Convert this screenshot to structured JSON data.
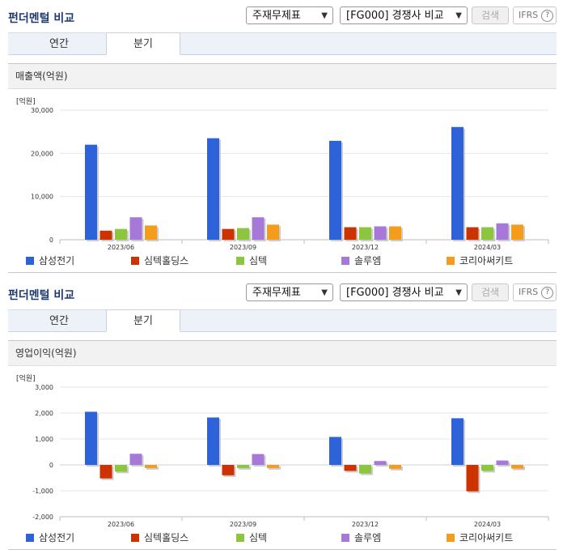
{
  "colors": {
    "title": "#1f3a6e",
    "samsung": "#2e62d9",
    "simtek_holdings": "#cc3300",
    "simtek": "#8cc63f",
    "solum": "#a679d8",
    "korea_circuit": "#f49c1c"
  },
  "panels": [
    {
      "title": "펀더멘털 비교",
      "select1": "주재무제표",
      "select2": "[FG000] 경쟁사 비교",
      "search_label": "검색",
      "ifrs_label": "IFRS",
      "ifrs_help": "?",
      "tabs": [
        "연간",
        "분기"
      ],
      "active_tab": 1,
      "chart_title": "매출액(억원)",
      "legend": [
        "삼성전기",
        "심텍홀딩스",
        "심텍",
        "솔루엠",
        "코리아써키트"
      ]
    },
    {
      "title": "펀더멘털 비교",
      "select1": "주재무제표",
      "select2": "[FG000] 경쟁사 비교",
      "search_label": "검색",
      "ifrs_label": "IFRS",
      "ifrs_help": "?",
      "tabs": [
        "연간",
        "분기"
      ],
      "active_tab": 1,
      "chart_title": "영업이익(억원)",
      "legend": [
        "삼성전기",
        "심텍홀딩스",
        "심텍",
        "솔루엠",
        "코리아써키트"
      ]
    }
  ],
  "chart_data": [
    {
      "type": "bar",
      "ylabel": "[억원]",
      "ylim": [
        0,
        30000
      ],
      "yticks": [
        "0",
        "10,000",
        "20,000",
        "30,000"
      ],
      "ytick_values": [
        0,
        10000,
        20000,
        30000
      ],
      "categories": [
        "2023/06",
        "2023/09",
        "2023/12",
        "2024/03"
      ],
      "series": [
        {
          "name": "삼성전기",
          "color": "#2e62d9",
          "values": [
            22000,
            23500,
            22900,
            26100
          ]
        },
        {
          "name": "심텍홀딩스",
          "color": "#cc3300",
          "values": [
            2100,
            2500,
            2900,
            2900
          ]
        },
        {
          "name": "심텍",
          "color": "#8cc63f",
          "values": [
            2500,
            2700,
            2900,
            2900
          ]
        },
        {
          "name": "솔루엠",
          "color": "#a679d8",
          "values": [
            5200,
            5200,
            3100,
            3800
          ]
        },
        {
          "name": "코리아써키트",
          "color": "#f49c1c",
          "values": [
            3300,
            3500,
            3100,
            3500
          ]
        }
      ],
      "grid": true,
      "legend_position": "bottom"
    },
    {
      "type": "bar",
      "ylabel": "[억원]",
      "ylim": [
        -2000,
        3000
      ],
      "yticks": [
        "-2,000",
        "-1,000",
        "0",
        "1,000",
        "2,000",
        "3,000"
      ],
      "ytick_values": [
        -2000,
        -1000,
        0,
        1000,
        2000,
        3000
      ],
      "categories": [
        "2023/06",
        "2023/09",
        "2023/12",
        "2024/03"
      ],
      "series": [
        {
          "name": "삼성전기",
          "color": "#2e62d9",
          "values": [
            2050,
            1830,
            1080,
            1800
          ]
        },
        {
          "name": "심텍홀딩스",
          "color": "#cc3300",
          "values": [
            -520,
            -400,
            -230,
            -1020
          ]
        },
        {
          "name": "심텍",
          "color": "#8cc63f",
          "values": [
            -260,
            -120,
            -330,
            -230
          ]
        },
        {
          "name": "솔루엠",
          "color": "#a679d8",
          "values": [
            430,
            420,
            150,
            170
          ]
        },
        {
          "name": "코리아써키트",
          "color": "#f49c1c",
          "values": [
            -120,
            -120,
            -150,
            -140
          ]
        }
      ],
      "grid": true,
      "legend_position": "bottom"
    }
  ]
}
